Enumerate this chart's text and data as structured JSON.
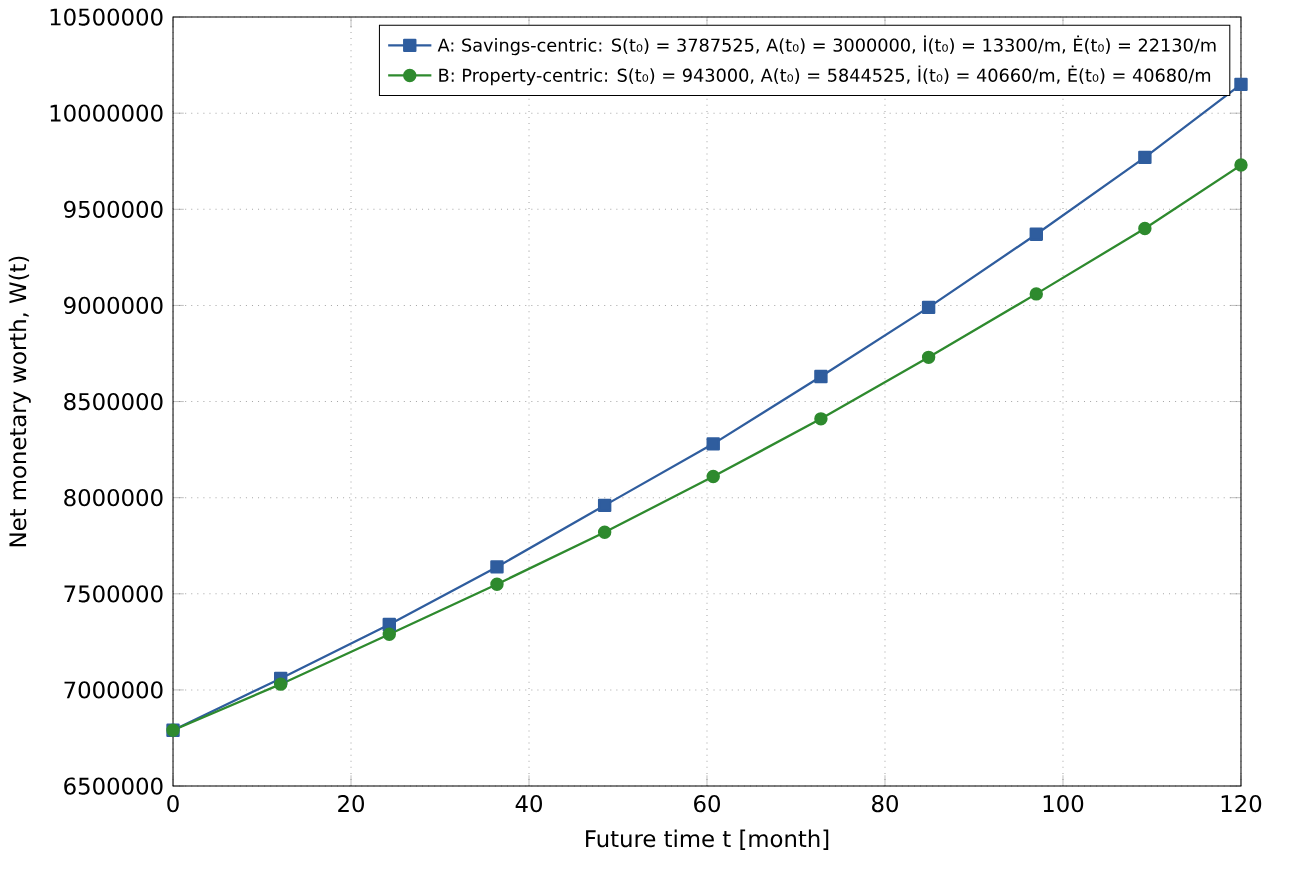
{
  "chart_data": {
    "type": "line",
    "xlabel": "Future time t [month]",
    "ylabel": "Net monetary worth, W(t)",
    "x": [
      0,
      12.1,
      24.3,
      36.4,
      48.5,
      60.7,
      72.8,
      84.9,
      97.0,
      109.2,
      120
    ],
    "series": [
      {
        "name": "A: Savings-centric: S(t₀) = 3787525, A(t₀) = 3000000, İ(t₀) = 13300/m, Ė(t₀) = 22130/m",
        "color": "#2f5d9e",
        "marker": "square",
        "values": [
          6790000,
          7060000,
          7340000,
          7640000,
          7960000,
          8280000,
          8630000,
          8990000,
          9370000,
          9770000,
          10150000
        ]
      },
      {
        "name": "B: Property-centric: S(t₀) = 943000, A(t₀) = 5844525, İ(t₀) = 40660/m, Ė(t₀) = 40680/m",
        "color": "#2e8a2e",
        "marker": "circle",
        "values": [
          6790000,
          7030000,
          7290000,
          7550000,
          7820000,
          8110000,
          8410000,
          8730000,
          9060000,
          9400000,
          9730000
        ]
      }
    ],
    "xlim": [
      0,
      120
    ],
    "ylim": [
      6500000,
      10500000
    ],
    "xticks": [
      0,
      20,
      40,
      60,
      80,
      100,
      120
    ],
    "yticks": [
      6500000,
      7000000,
      7500000,
      8000000,
      8500000,
      9000000,
      9500000,
      10000000,
      10500000
    ],
    "grid": true,
    "legend": "top right",
    "line_style": "solid"
  }
}
